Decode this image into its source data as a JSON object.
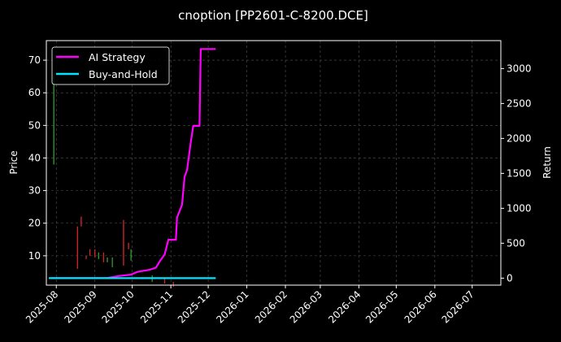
{
  "chart_data": {
    "type": "line",
    "title": "cnoption [PP2601-C-8200.DCE]",
    "ylabel_left": "Price",
    "ylabel_right": "Return",
    "x_axis": {
      "range": [
        "2025-07-24",
        "2026-07-24"
      ],
      "tick_dates": [
        "2025-08-01",
        "2025-09-01",
        "2025-10-01",
        "2025-11-01",
        "2025-12-01",
        "2026-01-01",
        "2026-02-01",
        "2026-03-01",
        "2026-04-01",
        "2026-05-01",
        "2026-06-01",
        "2026-07-01"
      ],
      "tick_labels": [
        "2025-08",
        "2025-09",
        "2025-10",
        "2025-11",
        "2025-12",
        "2026-01",
        "2026-02",
        "2026-03",
        "2026-04",
        "2026-05",
        "2026-06",
        "2026-07"
      ]
    },
    "y_left": {
      "range": [
        1,
        76
      ],
      "ticks": [
        10,
        20,
        30,
        40,
        50,
        60,
        70
      ]
    },
    "y_right": {
      "range": [
        -100,
        3400
      ],
      "ticks": [
        0,
        500,
        1000,
        1500,
        2000,
        2500,
        3000
      ]
    },
    "grid": true,
    "legend_position": "top-left",
    "series": [
      {
        "name": "AI Strategy",
        "color": "#ff00ff",
        "axis": "right",
        "points": [
          [
            "2025-07-28",
            0
          ],
          [
            "2025-09-10",
            0
          ],
          [
            "2025-09-20",
            30
          ],
          [
            "2025-09-30",
            50
          ],
          [
            "2025-10-05",
            90
          ],
          [
            "2025-10-15",
            120
          ],
          [
            "2025-10-20",
            150
          ],
          [
            "2025-10-23",
            240
          ],
          [
            "2025-10-27",
            340
          ],
          [
            "2025-10-30",
            550
          ],
          [
            "2025-11-05",
            550
          ],
          [
            "2025-11-06",
            870
          ],
          [
            "2025-11-10",
            1050
          ],
          [
            "2025-11-12",
            1450
          ],
          [
            "2025-11-14",
            1550
          ],
          [
            "2025-11-17",
            1950
          ],
          [
            "2025-11-19",
            2180
          ],
          [
            "2025-11-24",
            2180
          ],
          [
            "2025-11-25",
            3280
          ],
          [
            "2025-12-07",
            3280
          ]
        ]
      },
      {
        "name": "Buy-and-Hold",
        "color": "#00e5ff",
        "axis": "right",
        "points": [
          [
            "2025-07-26",
            0
          ],
          [
            "2025-12-07",
            0
          ]
        ]
      }
    ],
    "candles": {
      "axis": "left",
      "up_color": "#2ca02c",
      "down_color": "#d62728",
      "bars": [
        {
          "date": "2025-07-30",
          "low": 38,
          "high": 66,
          "dir": "up"
        },
        {
          "date": "2025-08-18",
          "low": 6,
          "high": 19,
          "dir": "down"
        },
        {
          "date": "2025-08-21",
          "low": 19,
          "high": 22,
          "dir": "down"
        },
        {
          "date": "2025-08-25",
          "low": 9,
          "high": 10,
          "dir": "down"
        },
        {
          "date": "2025-08-28",
          "low": 10,
          "high": 12,
          "dir": "down"
        },
        {
          "date": "2025-09-01",
          "low": 9.5,
          "high": 12,
          "dir": "down"
        },
        {
          "date": "2025-09-04",
          "low": 9,
          "high": 11,
          "dir": "up"
        },
        {
          "date": "2025-09-08",
          "low": 8,
          "high": 11,
          "dir": "down"
        },
        {
          "date": "2025-09-11",
          "low": 8,
          "high": 9.5,
          "dir": "up"
        },
        {
          "date": "2025-09-15",
          "low": 6.5,
          "high": 9.5,
          "dir": "up"
        },
        {
          "date": "2025-09-24",
          "low": 7,
          "high": 21,
          "dir": "down"
        },
        {
          "date": "2025-09-28",
          "low": 12,
          "high": 14,
          "dir": "down"
        },
        {
          "date": "2025-09-30",
          "low": 8.5,
          "high": 12,
          "dir": "up"
        },
        {
          "date": "2025-10-17",
          "low": 2,
          "high": 4,
          "dir": "up"
        },
        {
          "date": "2025-10-27",
          "low": 1.5,
          "high": 3,
          "dir": "down"
        },
        {
          "date": "2025-11-03",
          "low": 0.5,
          "high": 2,
          "dir": "down"
        }
      ]
    }
  }
}
